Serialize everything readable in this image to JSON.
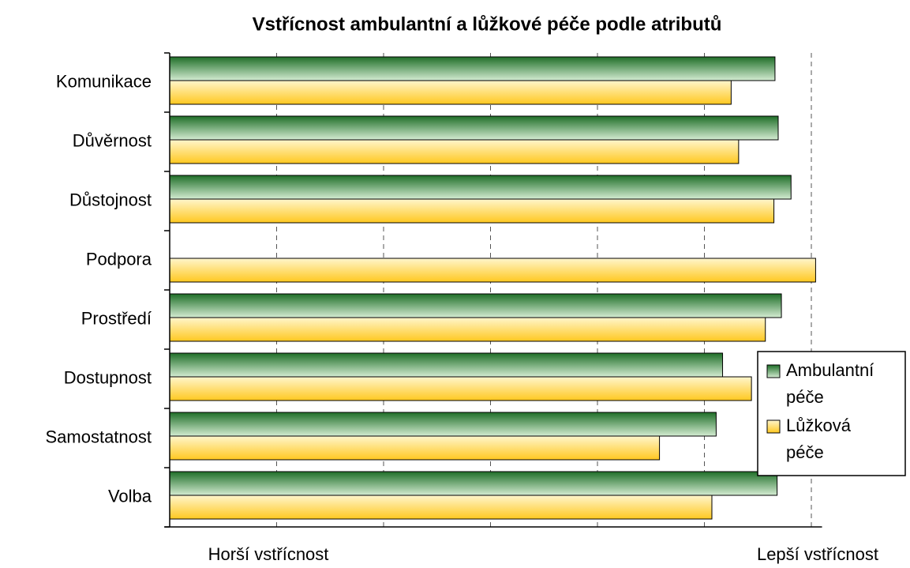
{
  "chart_data": {
    "type": "barh",
    "title": "Vstřícnost ambulantní a lůžkové péče podle atributů",
    "categories": [
      "Komunikace",
      "Důvěrnost",
      "Důstojnost",
      "Podpora",
      "Prostředí",
      "Dostupnost",
      "Samostatnost",
      "Volba"
    ],
    "series": [
      {
        "name": "Ambulantní péče",
        "color": "#2e8b3a",
        "values": [
          5.66,
          5.69,
          5.81,
          null,
          5.72,
          5.17,
          5.11,
          5.68
        ]
      },
      {
        "name": "Lůžková péče",
        "color": "#ffc820",
        "values": [
          5.25,
          5.32,
          5.65,
          6.04,
          5.57,
          5.44,
          4.58,
          5.07
        ]
      }
    ],
    "xlim": [
      0,
      6.1
    ],
    "xticks": [
      1,
      2,
      3,
      4,
      5,
      6
    ],
    "grid": true,
    "x_label_left": "Horší vstřícnost",
    "x_label_right": "Lepší vstřícnost",
    "legend": "right"
  }
}
